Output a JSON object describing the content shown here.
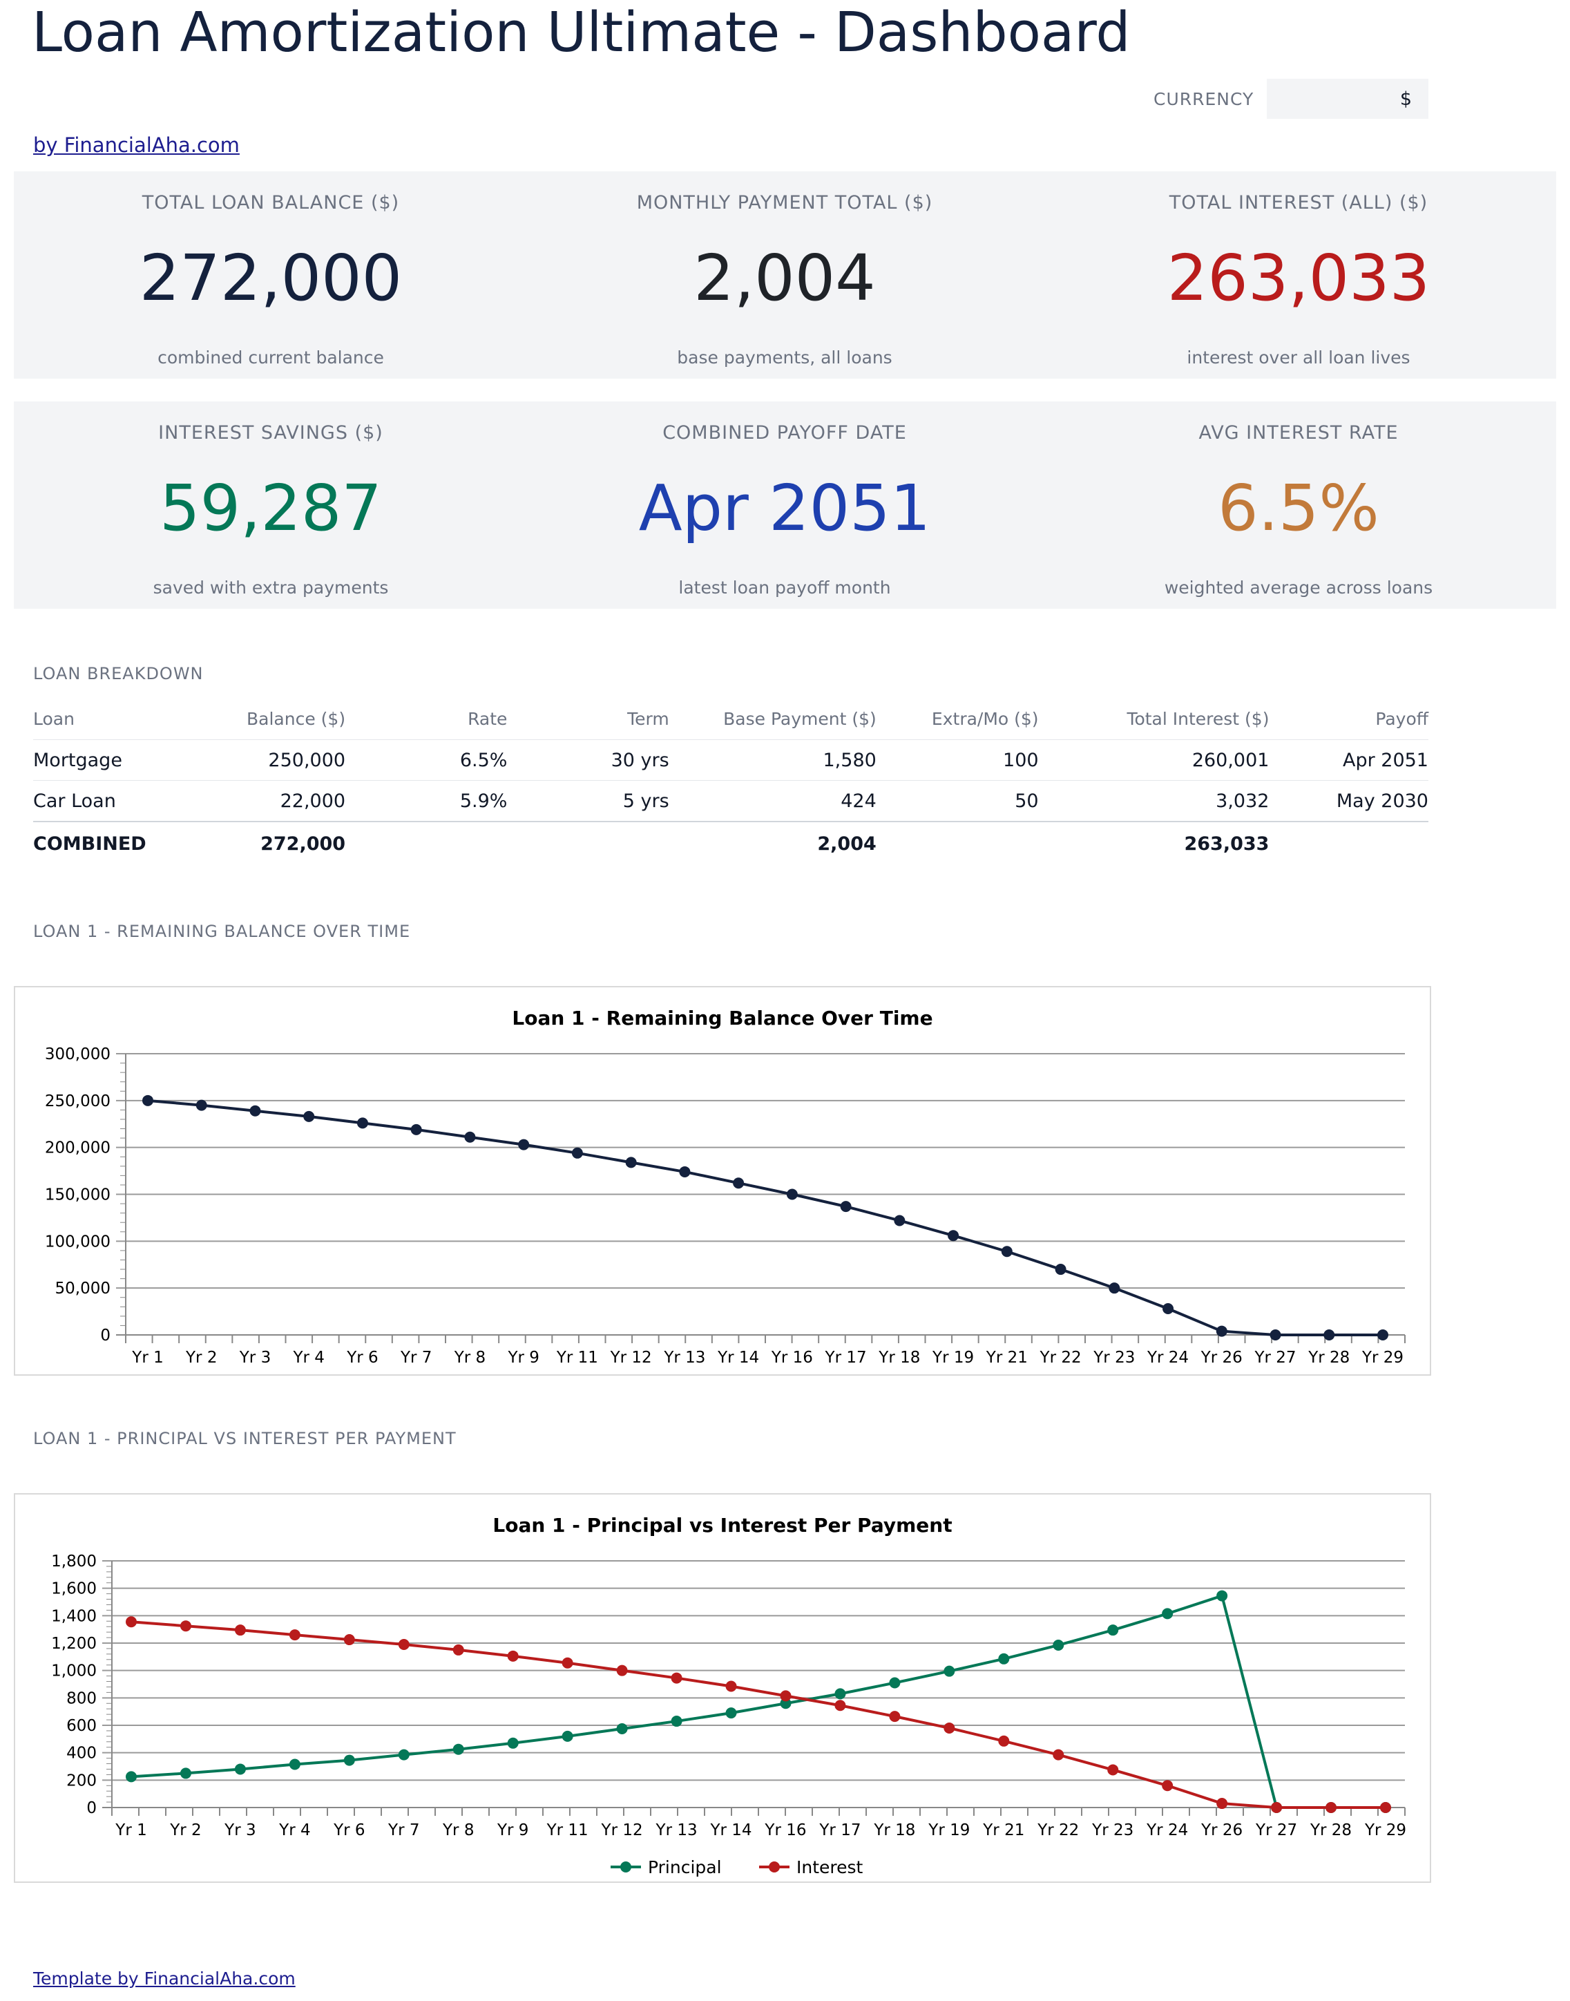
{
  "header": {
    "title": "Loan Amortization Ultimate - Dashboard",
    "currency_label": "CURRENCY",
    "currency_value": "$",
    "byline": "by FinancialAha.com"
  },
  "kpis_row1": [
    {
      "label": "TOTAL LOAN BALANCE ($)",
      "value": "272,000",
      "sub": "combined current balance",
      "color": "#14213d"
    },
    {
      "label": "MONTHLY PAYMENT TOTAL ($)",
      "value": "2,004",
      "sub": "base payments, all loans",
      "color": "#1f2328"
    },
    {
      "label": "TOTAL INTEREST (ALL) ($)",
      "value": "263,033",
      "sub": "interest over all loan lives",
      "color": "#b91c1c"
    }
  ],
  "kpis_row2": [
    {
      "label": "INTEREST SAVINGS ($)",
      "value": "59,287",
      "sub": "saved with extra payments",
      "color": "#047857"
    },
    {
      "label": "COMBINED PAYOFF DATE",
      "value": "Apr 2051",
      "sub": "latest loan payoff month",
      "color": "#1e40af"
    },
    {
      "label": "AVG INTEREST RATE",
      "value": "6.5%",
      "sub": "weighted average across loans",
      "color": "#c27a3a"
    }
  ],
  "breakdown": {
    "section_label": "LOAN BREAKDOWN",
    "columns": [
      "Loan",
      "Balance ($)",
      "Rate",
      "Term",
      "Base Payment ($)",
      "Extra/Mo ($)",
      "Total Interest ($)",
      "Payoff"
    ],
    "rows": [
      [
        "Mortgage",
        "250,000",
        "6.5%",
        "30 yrs",
        "1,580",
        "100",
        "260,001",
        "Apr 2051"
      ],
      [
        "Car Loan",
        "22,000",
        "5.9%",
        "5 yrs",
        "424",
        "50",
        "3,032",
        "May 2030"
      ]
    ],
    "total": [
      "COMBINED",
      "272,000",
      "",
      "",
      "2,004",
      "",
      "263,033",
      ""
    ]
  },
  "chart1_section_label": "LOAN 1 - REMAINING BALANCE OVER TIME",
  "chart2_section_label": "LOAN 1 - PRINCIPAL VS INTEREST PER PAYMENT",
  "footer": "Template by FinancialAha.com",
  "chart_data": [
    {
      "type": "line",
      "title": "Loan 1 - Remaining Balance Over Time",
      "xlabel": "",
      "ylabel": "",
      "ylim": [
        0,
        300000
      ],
      "yticks": [
        0,
        50000,
        100000,
        150000,
        200000,
        250000,
        300000
      ],
      "grid": true,
      "tick_labels": [
        "Yr 1",
        "Yr 2",
        "Yr 3",
        "Yr 4",
        "Yr 6",
        "Yr 7",
        "Yr 8",
        "Yr 9",
        "Yr 11",
        "Yr 12",
        "Yr 13",
        "Yr 14",
        "Yr 16",
        "Yr 17",
        "Yr 18",
        "Yr 19",
        "Yr 21",
        "Yr 22",
        "Yr 23",
        "Yr 24",
        "Yr 26",
        "Yr 27",
        "Yr 28",
        "Yr 29"
      ],
      "series": [
        {
          "color": "#14213d",
          "values": [
            250000,
            245000,
            239000,
            233000,
            226000,
            219000,
            211000,
            203000,
            194000,
            184000,
            174000,
            162000,
            150000,
            137000,
            122000,
            106000,
            89000,
            70000,
            50000,
            28000,
            4000,
            0,
            0,
            0
          ]
        }
      ]
    },
    {
      "type": "line",
      "title": "Loan 1 - Principal vs Interest Per Payment",
      "xlabel": "",
      "ylabel": "",
      "ylim": [
        0,
        1800
      ],
      "yticks": [
        0,
        200,
        400,
        600,
        800,
        1000,
        1200,
        1400,
        1600,
        1800
      ],
      "grid": true,
      "legend": "bottom",
      "tick_labels": [
        "Yr 1",
        "Yr 2",
        "Yr 3",
        "Yr 4",
        "Yr 6",
        "Yr 7",
        "Yr 8",
        "Yr 9",
        "Yr 11",
        "Yr 12",
        "Yr 13",
        "Yr 14",
        "Yr 16",
        "Yr 17",
        "Yr 18",
        "Yr 19",
        "Yr 21",
        "Yr 22",
        "Yr 23",
        "Yr 24",
        "Yr 26",
        "Yr 27",
        "Yr 28",
        "Yr 29"
      ],
      "series": [
        {
          "name": "Principal",
          "color": "#047857",
          "values": [
            225,
            250,
            280,
            315,
            345,
            385,
            425,
            470,
            520,
            575,
            630,
            690,
            760,
            830,
            910,
            995,
            1085,
            1185,
            1295,
            1415,
            1545,
            0,
            0,
            0
          ]
        },
        {
          "name": "Interest",
          "color": "#b91c1c",
          "values": [
            1355,
            1325,
            1295,
            1260,
            1225,
            1190,
            1150,
            1105,
            1055,
            1000,
            945,
            885,
            815,
            745,
            665,
            580,
            485,
            385,
            275,
            160,
            30,
            0,
            0,
            0
          ]
        }
      ]
    }
  ]
}
